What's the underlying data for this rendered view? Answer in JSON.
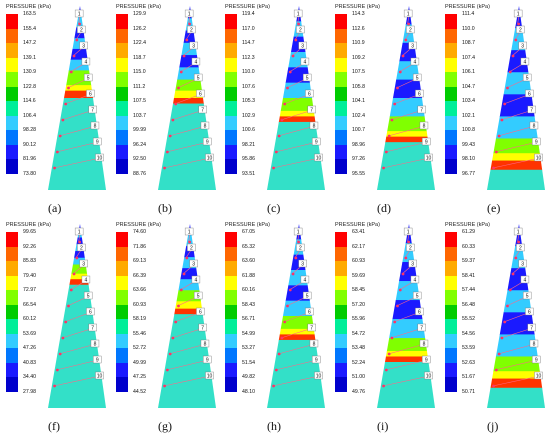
{
  "unit_label": "PRESSURE (kPa)",
  "colors": [
    "#ff0000",
    "#ff6600",
    "#ffaa00",
    "#ffff00",
    "#80ff00",
    "#00cc00",
    "#00ee99",
    "#33ccff",
    "#0077ff",
    "#1a1aff",
    "#0000cc"
  ],
  "panels": [
    {
      "caption": "(a)",
      "ticks": [
        "163.5",
        "155.4",
        "147.2",
        "139.1",
        "130.9",
        "122.8",
        "114.6",
        "106.4",
        "98.28",
        "90.12",
        "81.96",
        "73.80"
      ],
      "bands": [
        0.35,
        0.08,
        0.03,
        0.04,
        0.5
      ]
    },
    {
      "caption": "(b)",
      "ticks": [
        "129.9",
        "126.2",
        "122.4",
        "118.7",
        "115.0",
        "111.2",
        "107.5",
        "103.7",
        "99.99",
        "96.24",
        "92.50",
        "88.76"
      ],
      "bands": [
        0.4,
        0.06,
        0.04,
        0.03,
        0.47
      ]
    },
    {
      "caption": "(c)",
      "ticks": [
        "119.4",
        "117.0",
        "114.7",
        "112.3",
        "110.0",
        "107.6",
        "105.3",
        "102.9",
        "100.6",
        "98.21",
        "95.86",
        "93.51"
      ],
      "bands": [
        0.5,
        0.07,
        0.03,
        0.03,
        0.37
      ]
    },
    {
      "caption": "(d)",
      "ticks": [
        "114.3",
        "112.6",
        "110.9",
        "109.2",
        "107.5",
        "105.8",
        "104.1",
        "102.4",
        "100.7",
        "98.96",
        "97.26",
        "95.55"
      ],
      "bands": [
        0.6,
        0.08,
        0.03,
        0.03,
        0.26
      ]
    },
    {
      "caption": "(e)",
      "ticks": [
        "111.4",
        "110.0",
        "108.7",
        "107.4",
        "106.1",
        "104.7",
        "103.4",
        "102.1",
        "100.8",
        "99.43",
        "98.10",
        "96.77"
      ],
      "bands": [
        0.72,
        0.08,
        0.04,
        0.05,
        0.11
      ]
    },
    {
      "caption": "(f)",
      "ticks": [
        "99.65",
        "92.26",
        "85.83",
        "79.40",
        "72.97",
        "66.54",
        "60.12",
        "53.69",
        "47.26",
        "40.83",
        "34.40",
        "27.98"
      ],
      "bands": [
        0.22,
        0.05,
        0.03,
        0.03,
        0.67
      ]
    },
    {
      "caption": "(g)",
      "ticks": [
        "74.60",
        "71.86",
        "69.13",
        "66.39",
        "63.66",
        "60.93",
        "58.19",
        "55.46",
        "52.72",
        "49.99",
        "47.25",
        "44.52"
      ],
      "bands": [
        0.36,
        0.06,
        0.04,
        0.03,
        0.51
      ]
    },
    {
      "caption": "(h)",
      "ticks": [
        "67.05",
        "65.32",
        "63.60",
        "61.88",
        "60.16",
        "58.43",
        "56.71",
        "54.99",
        "53.27",
        "51.54",
        "49.82",
        "48.10"
      ],
      "bands": [
        0.5,
        0.07,
        0.03,
        0.03,
        0.37
      ]
    },
    {
      "caption": "(i)",
      "ticks": [
        "63.41",
        "62.17",
        "60.93",
        "59.69",
        "58.45",
        "57.20",
        "55.96",
        "54.72",
        "53.48",
        "52.24",
        "51.00",
        "49.76"
      ],
      "bands": [
        0.62,
        0.07,
        0.03,
        0.03,
        0.25
      ]
    },
    {
      "caption": "(j)",
      "ticks": [
        "61.29",
        "60.33",
        "59.37",
        "58.41",
        "57.44",
        "56.48",
        "55.52",
        "54.56",
        "53.59",
        "52.63",
        "51.67",
        "50.71"
      ],
      "bands": [
        0.72,
        0.08,
        0.04,
        0.05,
        0.11
      ]
    }
  ],
  "markers": [
    "1",
    "2",
    "3",
    "4",
    "5",
    "6",
    "7",
    "8",
    "9",
    "10"
  ]
}
